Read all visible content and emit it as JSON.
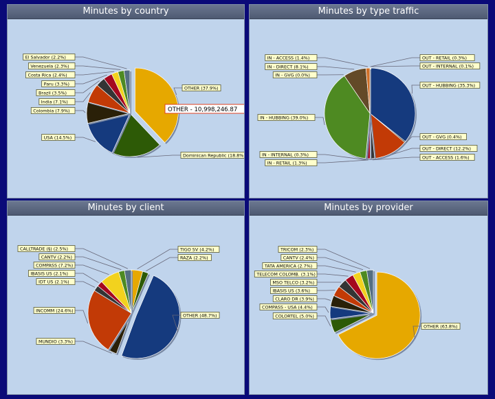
{
  "chart_data": [
    {
      "type": "pie",
      "title": "Minutes by country",
      "slices": [
        {
          "label": "OTHER (37.9%)",
          "value": 37.9,
          "color": "#e6a800",
          "exploded": true
        },
        {
          "label": "Dominican Republic (18.8%)",
          "value": 18.8,
          "color": "#2d5a06"
        },
        {
          "label": "USA (14.5%)",
          "value": 14.5,
          "color": "#153a7e"
        },
        {
          "label": "Colombia (7.9%)",
          "value": 7.9,
          "color": "#2a2008"
        },
        {
          "label": "India (7.1%)",
          "value": 7.1,
          "color": "#c23a06"
        },
        {
          "label": "Brazil (3.5%)",
          "value": 3.5,
          "color": "#343434"
        },
        {
          "label": "Paru (3.3%)",
          "value": 3.3,
          "color": "#a5081e"
        },
        {
          "label": "Costa Rica (2.4%)",
          "value": 2.4,
          "color": "#f2d21e"
        },
        {
          "label": "Venezuela (2.3%)",
          "value": 2.3,
          "color": "#4e8a22"
        },
        {
          "label": "El Salvador (2.2%)",
          "value": 2.2,
          "color": "#546e82"
        }
      ],
      "tooltip": "OTHER - 10,998,246.87"
    },
    {
      "type": "pie",
      "title": "Minutes by type traffic",
      "slices": [
        {
          "label": "OUT - RETAIL (0.3%)",
          "value": 0.3,
          "color": "#e6a800"
        },
        {
          "label": "OUT - INTERNAL (0.1%)",
          "value": 0.1,
          "color": "#2d5a06"
        },
        {
          "label": "OUT - HUBBING (35.3%)",
          "value": 35.3,
          "color": "#153a7e"
        },
        {
          "label": "OUT - GVG (0.4%)",
          "value": 0.4,
          "color": "#2a2008"
        },
        {
          "label": "OUT - DIRECT (12.2%)",
          "value": 12.2,
          "color": "#c23a06"
        },
        {
          "label": "OUT - ACCESS (1.6%)",
          "value": 1.6,
          "color": "#343434"
        },
        {
          "label": "IN - RETAIL (1.3%)",
          "value": 1.3,
          "color": "#a5081e"
        },
        {
          "label": "IN - INTERNAL (0.3%)",
          "value": 0.3,
          "color": "#f2d21e"
        },
        {
          "label": "IN - HUBBING (39.0%)",
          "value": 39.0,
          "color": "#4e8a22"
        },
        {
          "label": "IN - GVG (0.0%)",
          "value": 0.0,
          "color": "#546e82"
        },
        {
          "label": "IN - DIRECT (8.1%)",
          "value": 8.1,
          "color": "#634a28"
        },
        {
          "label": "IN - ACCESS (1.4%)",
          "value": 1.4,
          "color": "#d07028"
        }
      ]
    },
    {
      "type": "pie",
      "title": "Minutes by client",
      "slices": [
        {
          "label": "TIGO SV (4.2%)",
          "value": 4.2,
          "color": "#e6a800"
        },
        {
          "label": "RAZA (2.2%)",
          "value": 2.2,
          "color": "#2d5a06"
        },
        {
          "label": "OTHER (48.7%)",
          "value": 48.7,
          "color": "#153a7e",
          "exploded": true
        },
        {
          "label": "MUNDIO (3.3%)",
          "value": 3.3,
          "color": "#2a2008"
        },
        {
          "label": "INCOMM (24.6%)",
          "value": 24.6,
          "color": "#c23a06"
        },
        {
          "label": "IDT US (2.1%)",
          "value": 2.1,
          "color": "#343434"
        },
        {
          "label": "IBASIS US (2.1%)",
          "value": 2.1,
          "color": "#a5081e"
        },
        {
          "label": "COMPASS (7.2%)",
          "value": 7.2,
          "color": "#f2d21e"
        },
        {
          "label": "CANTV (2.2%)",
          "value": 2.2,
          "color": "#4e8a22"
        },
        {
          "label": "CALLTRADE (§) (2.5%)",
          "value": 2.5,
          "color": "#546e82"
        }
      ]
    },
    {
      "type": "pie",
      "title": "Minutes by provider",
      "slices": [
        {
          "label": "OTHER (63.8%)",
          "value": 63.8,
          "color": "#e6a800",
          "exploded": true
        },
        {
          "label": "COLORTEL (5.0%)",
          "value": 5.0,
          "color": "#2d5a06"
        },
        {
          "label": "COMPASS - USA (4.4%)",
          "value": 4.4,
          "color": "#153a7e"
        },
        {
          "label": "CLARO DR (3.9%)",
          "value": 3.9,
          "color": "#2a2008"
        },
        {
          "label": "IBASIS US (3.6%)",
          "value": 3.6,
          "color": "#c23a06"
        },
        {
          "label": "MSO TELCO (3.2%)",
          "value": 3.2,
          "color": "#343434"
        },
        {
          "label": "TELECOM COLOMB. (3.1%)",
          "value": 3.1,
          "color": "#a5081e"
        },
        {
          "label": "TATA AMERICA (2.7%)",
          "value": 2.7,
          "color": "#f2d21e"
        },
        {
          "label": "CANTV (2.4%)",
          "value": 2.4,
          "color": "#4e8a22"
        },
        {
          "label": "TRICOM (2.3%)",
          "value": 2.3,
          "color": "#546e82"
        }
      ]
    }
  ]
}
